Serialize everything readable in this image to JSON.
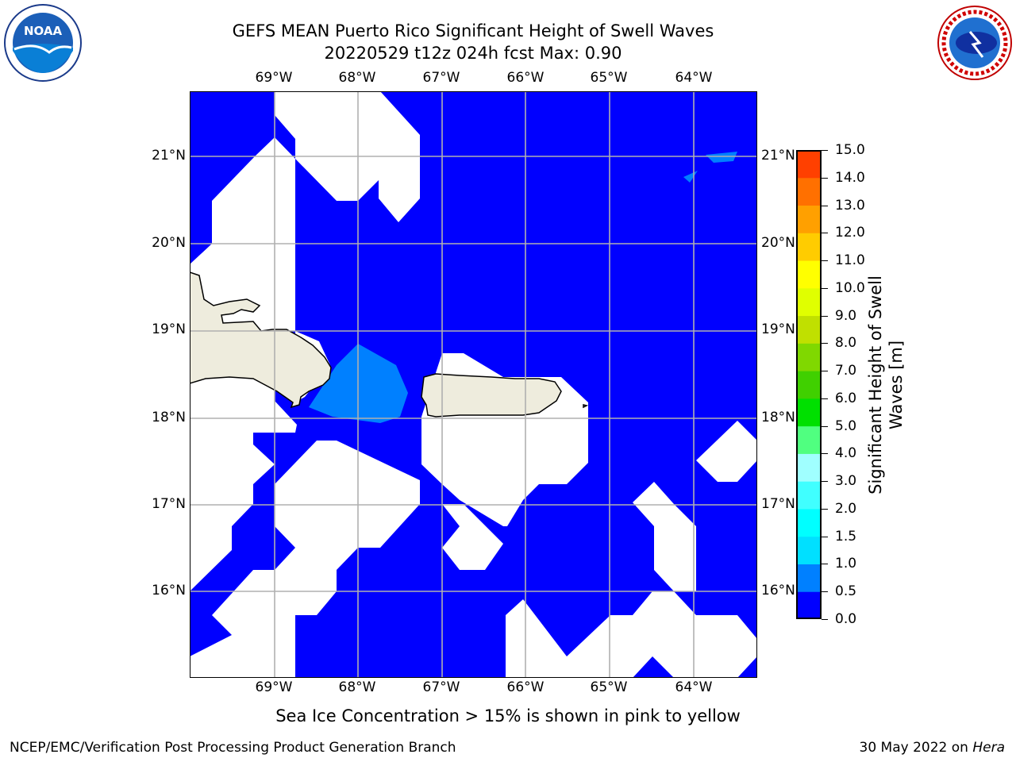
{
  "title": "GEFS MEAN Puerto Rico Significant Height of Swell Waves",
  "subtitle": "20220529 t12z 024h fcst   Max: 0.90",
  "longitude_labels": [
    "69°W",
    "68°W",
    "67°W",
    "66°W",
    "65°W",
    "64°W"
  ],
  "latitude_labels": [
    "21°N",
    "20°N",
    "19°N",
    "18°N",
    "17°N",
    "16°N"
  ],
  "colorbar": {
    "label": "Significant Height of Swell Waves [m]",
    "ticks": [
      "15.0",
      "14.0",
      "13.0",
      "12.0",
      "11.0",
      "10.0",
      "9.0",
      "8.0",
      "7.0",
      "6.0",
      "5.0",
      "4.0",
      "3.0",
      "2.0",
      "1.5",
      "1.0",
      "0.5",
      "0.0"
    ],
    "colors": [
      "#0000ff",
      "#0080ff",
      "#00e0ff",
      "#00ffff",
      "#40ffff",
      "#a0ffff",
      "#50ff80",
      "#00e000",
      "#40d000",
      "#80d800",
      "#c0e000",
      "#e0ff00",
      "#ffff00",
      "#ffcc00",
      "#ffa000",
      "#ff7000",
      "#ff4000",
      "#ff0000"
    ]
  },
  "map": {
    "ocean_color": "#0000ff",
    "no_data_color": "#ffffff",
    "land_color": "#eeecdd",
    "swell_zone_color": "#0080ff",
    "max_value": "0.90"
  },
  "logos": {
    "left": "NOAA",
    "right": "National Weather Service"
  },
  "note": "Sea Ice Concentration > 15% is shown in pink to yellow",
  "footer": {
    "left": "NCEP/EMC/Verification Post Processing Product Generation Branch",
    "date": "30 May 2022 on",
    "host": "Hera"
  }
}
